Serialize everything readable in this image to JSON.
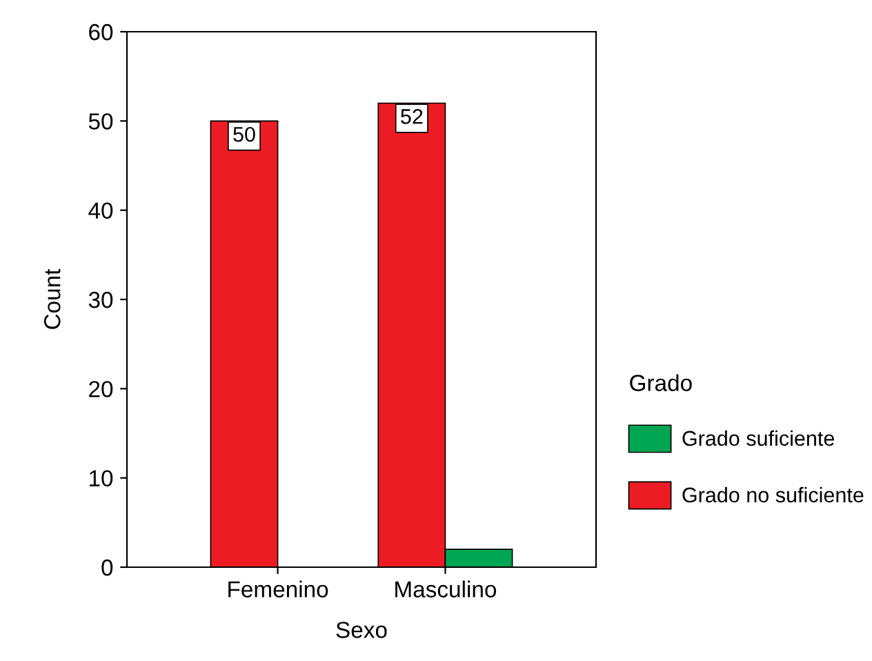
{
  "chart_data": {
    "type": "bar",
    "xlabel": "Sexo",
    "ylabel": "Count",
    "legend_title": "Grado",
    "categories": [
      "Femenino",
      "Masculino"
    ],
    "series": [
      {
        "name": "Grado no suficiente",
        "color": "#ed1c24",
        "values": [
          50,
          52
        ],
        "value_labels": [
          "50",
          "52"
        ]
      },
      {
        "name": "Grado suficiente",
        "color": "#00a651",
        "values": [
          null,
          2
        ],
        "value_labels": [
          null,
          null
        ]
      }
    ],
    "ylim": [
      0,
      60
    ],
    "yticks": [
      0,
      10,
      20,
      30,
      40,
      50,
      60
    ],
    "legend": "right",
    "grid": false
  }
}
